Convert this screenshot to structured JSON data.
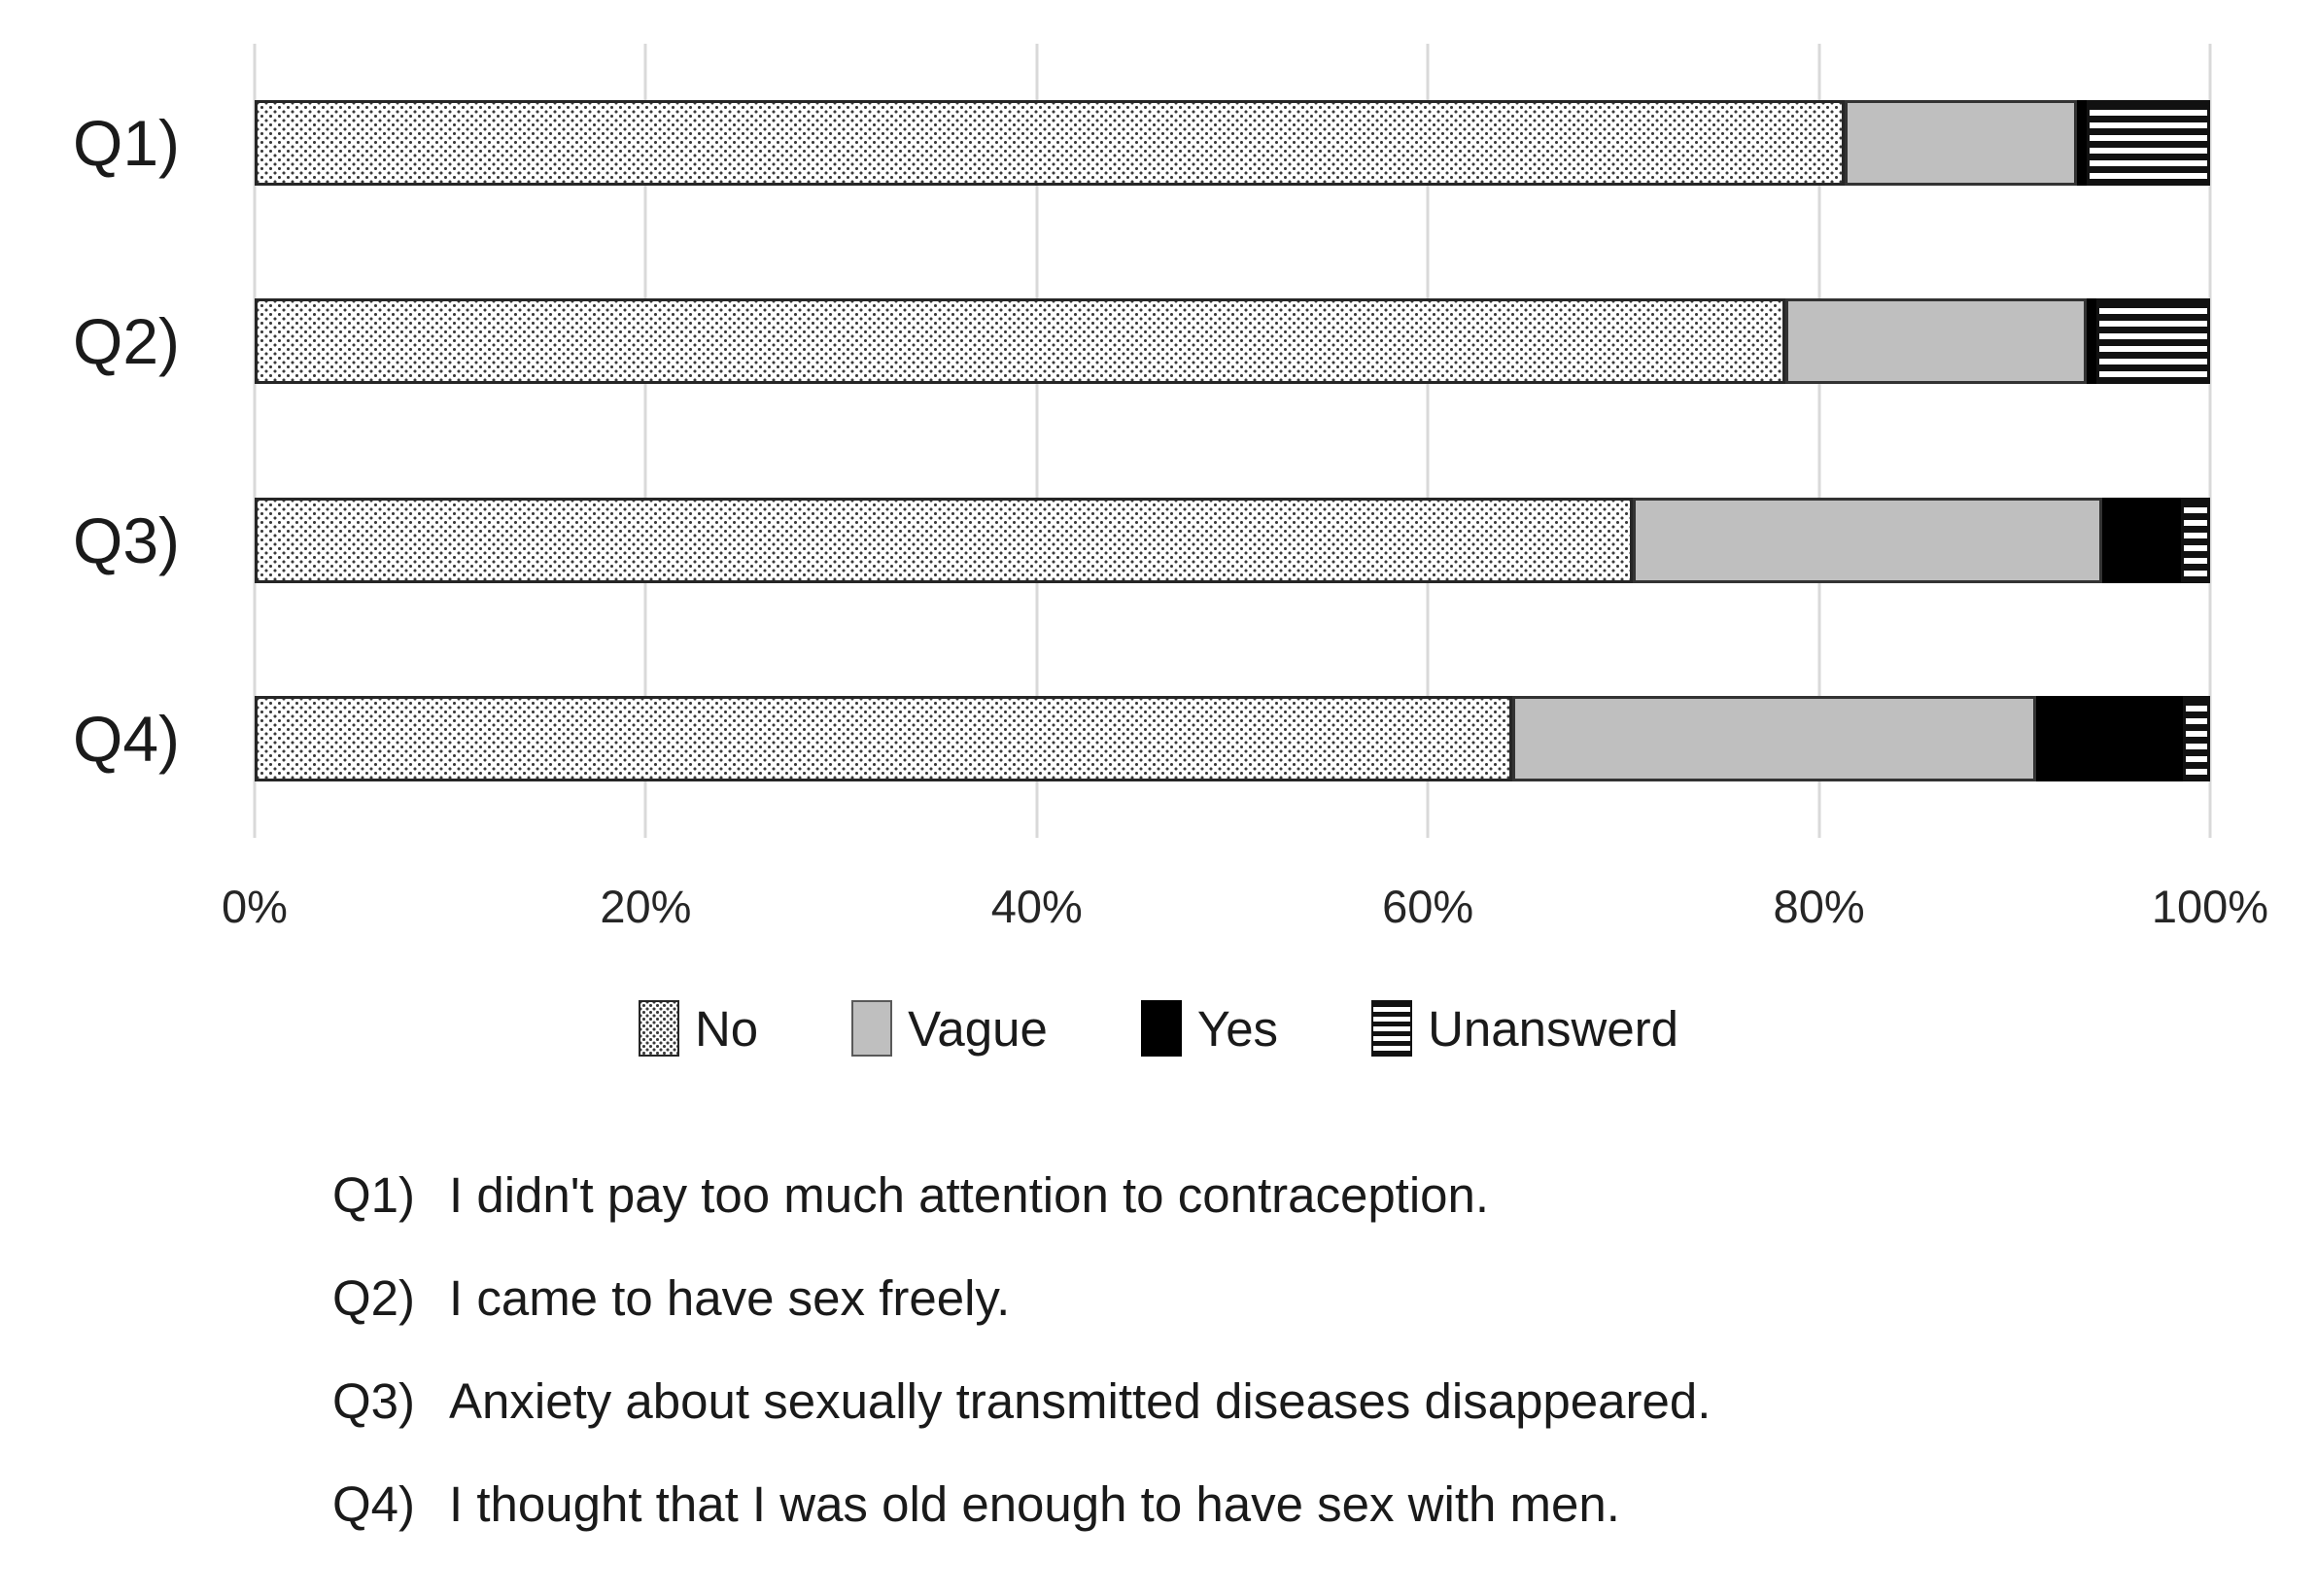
{
  "chart_data": {
    "type": "bar",
    "orientation": "horizontal-stacked",
    "title": "",
    "xlabel": "",
    "ylabel": "",
    "xlim": [
      0,
      100
    ],
    "x_ticks": [
      "0%",
      "20%",
      "40%",
      "60%",
      "80%",
      "100%"
    ],
    "grid": "vertical",
    "legend_position": "bottom",
    "categories": [
      "Q1)",
      "Q2)",
      "Q3)",
      "Q4)"
    ],
    "series": [
      {
        "name": "No",
        "pattern": "dots",
        "fill": "dotted-white",
        "values": [
          81.3,
          78.3,
          70.5,
          64.3
        ]
      },
      {
        "name": "Vague",
        "pattern": "gray",
        "fill": "#bfbfbf",
        "values": [
          11.9,
          15.4,
          24.0,
          26.8
        ]
      },
      {
        "name": "Yes",
        "pattern": "black",
        "fill": "#000000",
        "values": [
          0.5,
          0.5,
          4.0,
          7.5
        ]
      },
      {
        "name": "Unanswerd",
        "pattern": "stripes",
        "fill": "h-stripes",
        "values": [
          6.3,
          5.8,
          1.5,
          1.4
        ]
      }
    ]
  },
  "colors": {
    "gridline": "#d9d9d9",
    "bar_border": "#262626",
    "gray_fill": "#bfbfbf",
    "black_fill": "#000000",
    "text": "#1a1a1a"
  },
  "footnotes": [
    {
      "label": "Q1)",
      "text": "I didn't pay too much attention to contraception."
    },
    {
      "label": "Q2)",
      "text": "I came to have sex freely."
    },
    {
      "label": "Q3)",
      "text": "Anxiety about sexually transmitted diseases disappeared."
    },
    {
      "label": "Q4)",
      "text": "I thought that I was old enough to have sex with men."
    }
  ]
}
